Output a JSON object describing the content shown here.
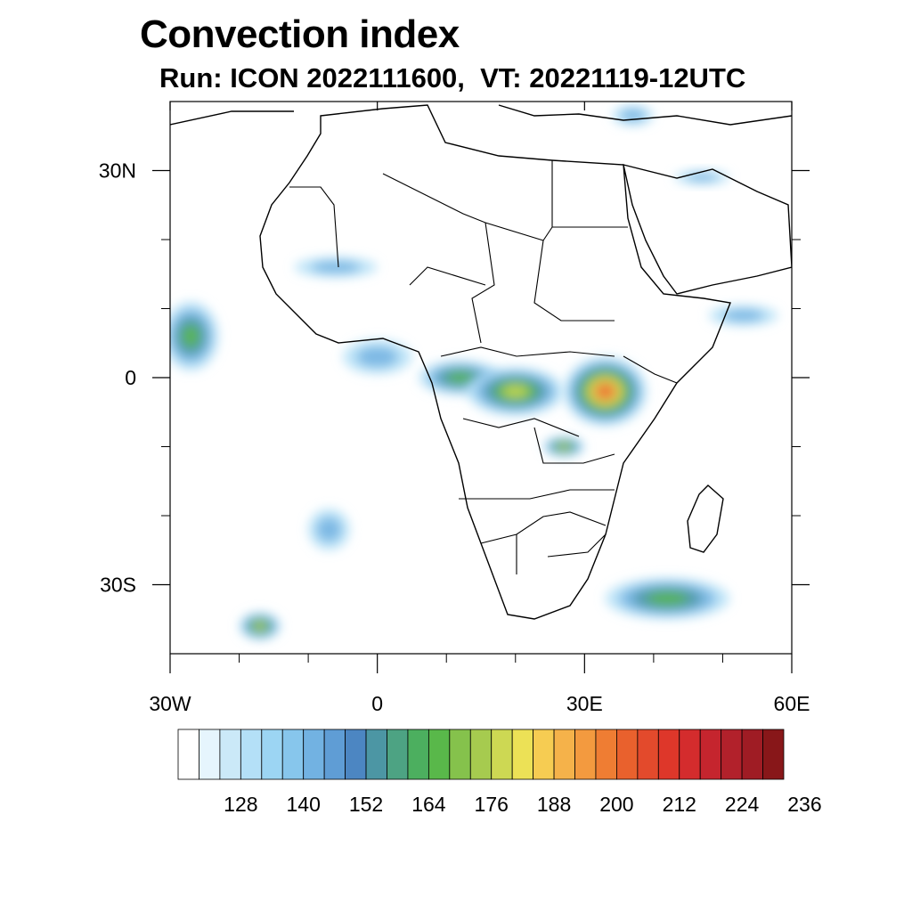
{
  "title": "Convection index",
  "subtitle": "Run: ICON 2022111600,  VT: 20221119-12UTC",
  "map": {
    "lon_range": [
      -30,
      60
    ],
    "lat_range": [
      -40,
      40
    ],
    "lon_labels": [
      {
        "lon": -30,
        "text": "30W"
      },
      {
        "lon": 0,
        "text": "0"
      },
      {
        "lon": 30,
        "text": "30E"
      },
      {
        "lon": 60,
        "text": "60E"
      }
    ],
    "lat_labels": [
      {
        "lat": 30,
        "text": "30N"
      },
      {
        "lat": 0,
        "text": "0"
      },
      {
        "lat": -30,
        "text": "30S"
      }
    ],
    "lon_minor_ticks": [
      -20,
      -10,
      10,
      20,
      40,
      50
    ],
    "lat_minor_ticks": [
      20,
      10,
      -10,
      -20
    ],
    "convection_zones": [
      {
        "lon": -27,
        "lat": 6,
        "rx": 4,
        "ry": 5,
        "level": 164
      },
      {
        "lon": 0,
        "lat": 3,
        "rx": 5,
        "ry": 2.5,
        "level": 140
      },
      {
        "lon": 12,
        "lat": 0,
        "rx": 6,
        "ry": 2.5,
        "level": 164
      },
      {
        "lon": 20,
        "lat": -2,
        "rx": 7,
        "ry": 3.5,
        "level": 176
      },
      {
        "lon": 33,
        "lat": -2,
        "rx": 6,
        "ry": 5,
        "level": 200
      },
      {
        "lon": 27,
        "lat": -10,
        "rx": 3,
        "ry": 1.5,
        "level": 176
      },
      {
        "lon": 42,
        "lat": -32,
        "rx": 9,
        "ry": 3,
        "level": 164
      },
      {
        "lon": -17,
        "lat": -36,
        "rx": 3,
        "ry": 2,
        "level": 176
      },
      {
        "lon": 53,
        "lat": 9,
        "rx": 5,
        "ry": 1.5,
        "level": 140
      },
      {
        "lon": 47,
        "lat": 29,
        "rx": 4,
        "ry": 1,
        "level": 140
      },
      {
        "lon": -6,
        "lat": 16,
        "rx": 6,
        "ry": 1.5,
        "level": 140
      },
      {
        "lon": -7,
        "lat": -22,
        "rx": 3,
        "ry": 3,
        "level": 140
      },
      {
        "lon": 37,
        "lat": 38,
        "rx": 3,
        "ry": 1.5,
        "level": 140
      }
    ]
  },
  "colorbar": {
    "colors": [
      "#ffffff",
      "#e6f5fd",
      "#cbe9f8",
      "#b4e0f7",
      "#9cd5f3",
      "#87c6ec",
      "#72b2e2",
      "#5f9dd5",
      "#4c86c2",
      "#4c96a4",
      "#4da383",
      "#4caf5f",
      "#59b84a",
      "#85c24c",
      "#a6cb4f",
      "#cdd853",
      "#ece156",
      "#f6cc52",
      "#f5b24a",
      "#f39a3f",
      "#ef7d33",
      "#e9612d",
      "#e34a2c",
      "#de372a",
      "#d42c2d",
      "#c5252e",
      "#b2212b",
      "#9f1c24",
      "#881719"
    ],
    "labels": [
      "128",
      "140",
      "152",
      "164",
      "176",
      "188",
      "200",
      "212",
      "224",
      "236"
    ],
    "first_level": 116,
    "step": 4
  }
}
